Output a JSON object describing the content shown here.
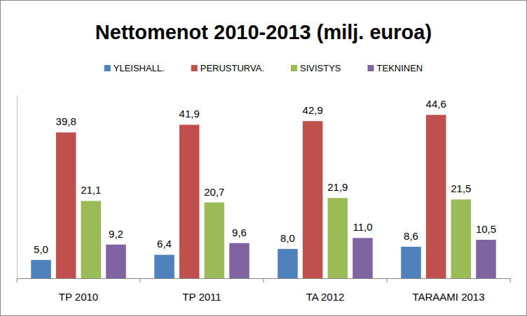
{
  "chart_data": {
    "type": "bar",
    "title": "Nettomenot 2010-2013 (milj. euroa)",
    "categories": [
      "TP 2010",
      "TP 2011",
      "TA 2012",
      "TARAAMI 2013"
    ],
    "series": [
      {
        "name": "YLEISHALL.",
        "color": "#4f81bd",
        "values": [
          5.0,
          6.4,
          8.0,
          8.6
        ],
        "value_labels": [
          "5,0",
          "6,4",
          "8,0",
          "8,6"
        ]
      },
      {
        "name": "PERUSTURVA.",
        "color": "#c0504d",
        "values": [
          39.8,
          41.9,
          42.9,
          44.6
        ],
        "value_labels": [
          "39,8",
          "41,9",
          "42,9",
          "44,6"
        ]
      },
      {
        "name": "SIVISTYS",
        "color": "#9bbb59",
        "values": [
          21.1,
          20.7,
          21.9,
          21.5
        ],
        "value_labels": [
          "21,1",
          "20,7",
          "21,9",
          "21,5"
        ]
      },
      {
        "name": "TEKNINEN",
        "color": "#8064a2",
        "values": [
          9.2,
          9.6,
          11.0,
          10.5
        ],
        "value_labels": [
          "9,2",
          "9,6",
          "11,0",
          "10,5"
        ]
      }
    ],
    "ylim": [
      0,
      50
    ],
    "grid": false,
    "legend": "top",
    "data_labels": true,
    "tick_labels": "x"
  }
}
